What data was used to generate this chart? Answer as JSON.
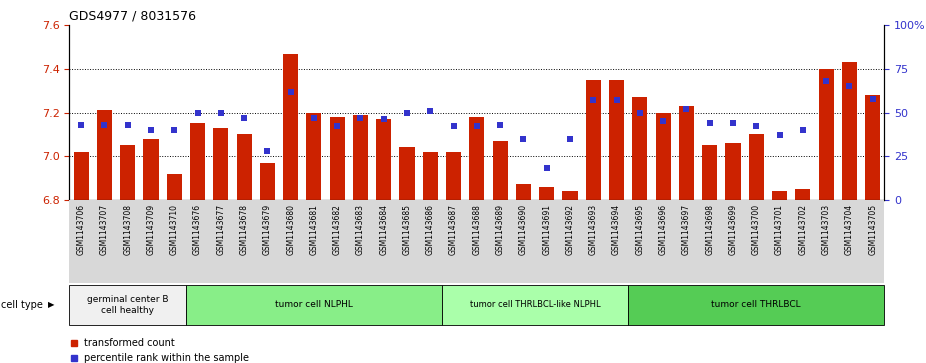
{
  "title": "GDS4977 / 8031576",
  "samples": [
    "GSM1143706",
    "GSM1143707",
    "GSM1143708",
    "GSM1143709",
    "GSM1143710",
    "GSM1143676",
    "GSM1143677",
    "GSM1143678",
    "GSM1143679",
    "GSM1143680",
    "GSM1143681",
    "GSM1143682",
    "GSM1143683",
    "GSM1143684",
    "GSM1143685",
    "GSM1143686",
    "GSM1143687",
    "GSM1143688",
    "GSM1143689",
    "GSM1143690",
    "GSM1143691",
    "GSM1143692",
    "GSM1143693",
    "GSM1143694",
    "GSM1143695",
    "GSM1143696",
    "GSM1143697",
    "GSM1143698",
    "GSM1143699",
    "GSM1143700",
    "GSM1143701",
    "GSM1143702",
    "GSM1143703",
    "GSM1143704",
    "GSM1143705"
  ],
  "bar_values": [
    7.02,
    7.21,
    7.05,
    7.08,
    6.92,
    7.15,
    7.13,
    7.1,
    6.97,
    7.47,
    7.2,
    7.18,
    7.19,
    7.17,
    7.04,
    7.02,
    7.02,
    7.18,
    7.07,
    6.87,
    6.86,
    6.84,
    7.35,
    7.35,
    7.27,
    7.2,
    7.23,
    7.05,
    7.06,
    7.1,
    6.84,
    6.85,
    7.4,
    7.43,
    7.28
  ],
  "dot_values": [
    43,
    43,
    43,
    40,
    40,
    50,
    50,
    47,
    28,
    62,
    47,
    42,
    47,
    46,
    50,
    51,
    42,
    42,
    43,
    35,
    18,
    35,
    57,
    57,
    50,
    45,
    52,
    44,
    44,
    42,
    37,
    40,
    68,
    65,
    58
  ],
  "ylim_left": [
    6.8,
    7.6
  ],
  "ylim_right": [
    0,
    100
  ],
  "yticks_left": [
    6.8,
    7.0,
    7.2,
    7.4,
    7.6
  ],
  "yticks_right": [
    0,
    25,
    50,
    75,
    100
  ],
  "ytick_labels_right": [
    "0",
    "25",
    "50",
    "75",
    "100%"
  ],
  "bar_color": "#CC2200",
  "dot_color": "#3333CC",
  "bar_baseline": 6.8,
  "cell_type_groups": [
    {
      "label": "germinal center B\ncell healthy",
      "start": 0,
      "end": 5,
      "color": "#f0f0f0"
    },
    {
      "label": "tumor cell NLPHL",
      "start": 5,
      "end": 16,
      "color": "#88ee88"
    },
    {
      "label": "tumor cell THRLBCL-like NLPHL",
      "start": 16,
      "end": 24,
      "color": "#aaffaa"
    },
    {
      "label": "tumor cell THRLBCL",
      "start": 24,
      "end": 35,
      "color": "#55cc55"
    }
  ],
  "legend_bar_label": "transformed count",
  "legend_dot_label": "percentile rank within the sample",
  "cell_type_label": "cell type",
  "hline_values": [
    7.0,
    7.2,
    7.4
  ],
  "xtick_bg_color": "#d8d8d8"
}
